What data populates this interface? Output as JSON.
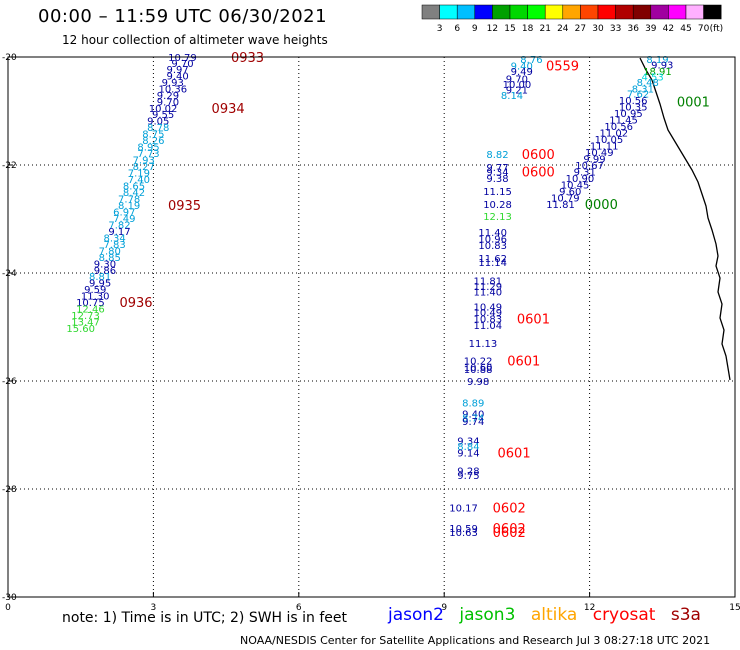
{
  "title": "00:00 – 11:59 UTC 06/30/2021",
  "subtitle": "12 hour collection of altimeter wave heights",
  "footnote": "note: 1) Time is in UTC; 2) SWH is in feet",
  "credit": "NOAA/NESDIS Center for Satellite Applications and Research   Jul  3 08:27:18 UTC 2021",
  "colorbar": {
    "unit": "(ft)",
    "ticks": [
      "3",
      "6",
      "9",
      "12",
      "15",
      "18",
      "21",
      "24",
      "27",
      "30",
      "33",
      "36",
      "39",
      "42",
      "45",
      "70"
    ],
    "colors": [
      "#808080",
      "#00ffff",
      "#00bfff",
      "#0000ff",
      "#00a000",
      "#00d800",
      "#00ff00",
      "#ffff00",
      "#ffa500",
      "#ff4500",
      "#ff0000",
      "#b00000",
      "#800000",
      "#a000a0",
      "#ff00ff",
      "#ffb0ff",
      "#000000"
    ]
  },
  "satellites": [
    {
      "name": "jason2",
      "color": "#0000ff"
    },
    {
      "name": "jason3",
      "color": "#00c000"
    },
    {
      "name": "altika",
      "color": "#ffa500"
    },
    {
      "name": "cryosat",
      "color": "#ff0000"
    },
    {
      "name": "s3a",
      "color": "#a00000"
    }
  ],
  "chart_data": {
    "type": "scatter",
    "xlim": [
      0,
      15
    ],
    "ylim": [
      -30,
      -20
    ],
    "xticks": [
      "0",
      "3",
      "6",
      "9",
      "12",
      "15"
    ],
    "yticks": [
      "-20",
      "-22",
      "-24",
      "-26",
      "-28",
      "-30"
    ],
    "grid": true,
    "points": [
      {
        "x": 3.6,
        "y": -20.0,
        "label": "10.79",
        "color": "#0000a0"
      },
      {
        "x": 3.6,
        "y": -20.11,
        "label": "9.70",
        "color": "#0000a0"
      },
      {
        "x": 3.5,
        "y": -20.22,
        "label": "9.97",
        "color": "#0000a0"
      },
      {
        "x": 3.5,
        "y": -20.34,
        "label": "9.40",
        "color": "#0000a0"
      },
      {
        "x": 3.4,
        "y": -20.46,
        "label": "9.93",
        "color": "#0000a0"
      },
      {
        "x": 3.4,
        "y": -20.58,
        "label": "10.36",
        "color": "#0000a0"
      },
      {
        "x": 3.3,
        "y": -20.7,
        "label": "9.29",
        "color": "#0000a0"
      },
      {
        "x": 3.3,
        "y": -20.82,
        "label": "9.70",
        "color": "#0000a0"
      },
      {
        "x": 3.2,
        "y": -20.94,
        "label": "10.02",
        "color": "#0000a0"
      },
      {
        "x": 3.2,
        "y": -21.06,
        "label": "9.55",
        "color": "#0000a0"
      },
      {
        "x": 3.1,
        "y": -21.18,
        "label": "9.05",
        "color": "#0000a0"
      },
      {
        "x": 3.1,
        "y": -21.3,
        "label": "8.78",
        "color": "#00a0d8"
      },
      {
        "x": 3.0,
        "y": -21.42,
        "label": "8.75",
        "color": "#00a0d8"
      },
      {
        "x": 3.0,
        "y": -21.54,
        "label": "8.26",
        "color": "#00a0d8"
      },
      {
        "x": 2.9,
        "y": -21.66,
        "label": "8.95",
        "color": "#00a0d8"
      },
      {
        "x": 2.9,
        "y": -21.78,
        "label": "7.73",
        "color": "#00a0d8"
      },
      {
        "x": 2.8,
        "y": -21.9,
        "label": "7.93",
        "color": "#00a0d8"
      },
      {
        "x": 2.8,
        "y": -22.02,
        "label": "8.27",
        "color": "#00a0d8"
      },
      {
        "x": 2.7,
        "y": -22.14,
        "label": "7.19",
        "color": "#00a0d8"
      },
      {
        "x": 2.7,
        "y": -22.26,
        "label": "7.40",
        "color": "#00a0d8"
      },
      {
        "x": 2.6,
        "y": -22.38,
        "label": "8.65",
        "color": "#00a0d8"
      },
      {
        "x": 2.6,
        "y": -22.5,
        "label": "8.42",
        "color": "#00a0d8"
      },
      {
        "x": 2.5,
        "y": -22.62,
        "label": "7.78",
        "color": "#00a0d8"
      },
      {
        "x": 2.5,
        "y": -22.74,
        "label": "8.19",
        "color": "#00a0d8"
      },
      {
        "x": 2.4,
        "y": -22.86,
        "label": "6.97",
        "color": "#00a0d8"
      },
      {
        "x": 2.4,
        "y": -22.98,
        "label": "7.49",
        "color": "#00a0d8"
      },
      {
        "x": 2.3,
        "y": -23.1,
        "label": "7.82",
        "color": "#00a0d8"
      },
      {
        "x": 2.3,
        "y": -23.22,
        "label": "9.17",
        "color": "#0000a0"
      },
      {
        "x": 2.2,
        "y": -23.34,
        "label": "8.34",
        "color": "#00a0d8"
      },
      {
        "x": 2.2,
        "y": -23.46,
        "label": "7.83",
        "color": "#00a0d8"
      },
      {
        "x": 2.1,
        "y": -23.58,
        "label": "7.80",
        "color": "#00a0d8"
      },
      {
        "x": 2.1,
        "y": -23.7,
        "label": "8.85",
        "color": "#00a0d8"
      },
      {
        "x": 2.0,
        "y": -23.82,
        "label": "9.30",
        "color": "#0000a0"
      },
      {
        "x": 2.0,
        "y": -23.94,
        "label": "9.86",
        "color": "#0000a0"
      },
      {
        "x": 1.9,
        "y": -24.06,
        "label": "8.81",
        "color": "#00a0d8"
      },
      {
        "x": 1.9,
        "y": -24.18,
        "label": "9.95",
        "color": "#0000a0"
      },
      {
        "x": 1.8,
        "y": -24.3,
        "label": "9.59",
        "color": "#0000a0"
      },
      {
        "x": 1.8,
        "y": -24.42,
        "label": "11.30",
        "color": "#0000a0"
      },
      {
        "x": 1.7,
        "y": -24.54,
        "label": "10.75",
        "color": "#0000a0"
      },
      {
        "x": 1.7,
        "y": -24.66,
        "label": "12.46",
        "color": "#30d830"
      },
      {
        "x": 1.6,
        "y": -24.78,
        "label": "12.73",
        "color": "#30d830"
      },
      {
        "x": 1.6,
        "y": -24.9,
        "label": "13.47",
        "color": "#30d830"
      },
      {
        "x": 1.5,
        "y": -25.02,
        "label": "15.60",
        "color": "#30d830"
      },
      {
        "x": 10.8,
        "y": -20.04,
        "label": "8.76",
        "color": "#00a0d8"
      },
      {
        "x": 10.6,
        "y": -20.16,
        "label": "9.40",
        "color": "#00a0d8"
      },
      {
        "x": 10.6,
        "y": -20.26,
        "label": "9.49",
        "color": "#0000a0"
      },
      {
        "x": 10.5,
        "y": -20.4,
        "label": "9.70",
        "color": "#0000a0"
      },
      {
        "x": 10.5,
        "y": -20.5,
        "label": "10.00",
        "color": "#0000a0"
      },
      {
        "x": 10.5,
        "y": -20.6,
        "label": "9.21",
        "color": "#0000a0"
      },
      {
        "x": 10.4,
        "y": -20.7,
        "label": "8.14",
        "color": "#00a0d8"
      },
      {
        "x": 10.1,
        "y": -21.8,
        "label": "8.82",
        "color": "#00a0d8"
      },
      {
        "x": 10.1,
        "y": -22.04,
        "label": "9.77",
        "color": "#0000a0"
      },
      {
        "x": 10.1,
        "y": -22.12,
        "label": "9.34",
        "color": "#0000a0"
      },
      {
        "x": 10.1,
        "y": -22.24,
        "label": "9.38",
        "color": "#0000a0"
      },
      {
        "x": 10.1,
        "y": -22.48,
        "label": "11.15",
        "color": "#0000a0"
      },
      {
        "x": 10.1,
        "y": -22.72,
        "label": "10.28",
        "color": "#0000a0"
      },
      {
        "x": 10.1,
        "y": -22.94,
        "label": "12.13",
        "color": "#30d830"
      },
      {
        "x": 10.0,
        "y": -23.24,
        "label": "11.40",
        "color": "#0000a0"
      },
      {
        "x": 10.0,
        "y": -23.36,
        "label": "10.96",
        "color": "#0000a0"
      },
      {
        "x": 10.0,
        "y": -23.48,
        "label": "10.83",
        "color": "#0000a0"
      },
      {
        "x": 10.0,
        "y": -23.72,
        "label": "11.62",
        "color": "#0000a0"
      },
      {
        "x": 10.0,
        "y": -23.8,
        "label": "11.14",
        "color": "#0000a0"
      },
      {
        "x": 9.9,
        "y": -24.14,
        "label": "11.81",
        "color": "#0000a0"
      },
      {
        "x": 9.9,
        "y": -24.24,
        "label": "11.29",
        "color": "#0000a0"
      },
      {
        "x": 9.9,
        "y": -24.34,
        "label": "11.40",
        "color": "#0000a0"
      },
      {
        "x": 9.9,
        "y": -24.62,
        "label": "10.49",
        "color": "#0000a0"
      },
      {
        "x": 9.9,
        "y": -24.72,
        "label": "10.49",
        "color": "#0000a0"
      },
      {
        "x": 9.9,
        "y": -24.84,
        "label": "10.83",
        "color": "#0000a0"
      },
      {
        "x": 9.9,
        "y": -24.96,
        "label": "11.04",
        "color": "#0000a0"
      },
      {
        "x": 9.8,
        "y": -25.3,
        "label": "11.13",
        "color": "#0000a0"
      },
      {
        "x": 9.7,
        "y": -25.62,
        "label": "10.22",
        "color": "#0000a0"
      },
      {
        "x": 9.7,
        "y": -25.74,
        "label": "10.60",
        "color": "#0000a0"
      },
      {
        "x": 9.7,
        "y": -25.78,
        "label": "10.88",
        "color": "#0000a0"
      },
      {
        "x": 9.7,
        "y": -26.0,
        "label": "9.98",
        "color": "#0000a0"
      },
      {
        "x": 9.6,
        "y": -26.4,
        "label": "8.89",
        "color": "#00a0d8"
      },
      {
        "x": 9.6,
        "y": -26.6,
        "label": "9.40",
        "color": "#0000a0"
      },
      {
        "x": 9.6,
        "y": -26.68,
        "label": "8.74",
        "color": "#00a0d8"
      },
      {
        "x": 9.6,
        "y": -26.74,
        "label": "9.74",
        "color": "#0000a0"
      },
      {
        "x": 9.5,
        "y": -27.1,
        "label": "9.34",
        "color": "#0000a0"
      },
      {
        "x": 9.5,
        "y": -27.2,
        "label": "8.84",
        "color": "#00a0d8"
      },
      {
        "x": 9.5,
        "y": -27.32,
        "label": "9.14",
        "color": "#0000a0"
      },
      {
        "x": 9.5,
        "y": -27.66,
        "label": "9.28",
        "color": "#0000a0"
      },
      {
        "x": 9.5,
        "y": -27.74,
        "label": "9.75",
        "color": "#0000a0"
      },
      {
        "x": 9.4,
        "y": -28.34,
        "label": "10.17",
        "color": "#0000a0"
      },
      {
        "x": 9.4,
        "y": -28.72,
        "label": "10.59",
        "color": "#0000a0"
      },
      {
        "x": 9.4,
        "y": -28.8,
        "label": "10.63",
        "color": "#0000a0"
      },
      {
        "x": 13.4,
        "y": -20.04,
        "label": "8.19",
        "color": "#00a0d8"
      },
      {
        "x": 13.5,
        "y": -20.14,
        "label": "9.93",
        "color": "#0000a0"
      },
      {
        "x": 13.4,
        "y": -20.26,
        "label": "18.91",
        "color": "#00a000"
      },
      {
        "x": 13.3,
        "y": -20.36,
        "label": "4.53",
        "color": "#00d8d8"
      },
      {
        "x": 13.2,
        "y": -20.46,
        "label": "8.48",
        "color": "#00a0d8"
      },
      {
        "x": 13.1,
        "y": -20.58,
        "label": "8.31",
        "color": "#00a0d8"
      },
      {
        "x": 13.0,
        "y": -20.68,
        "label": "7.62",
        "color": "#00a0d8"
      },
      {
        "x": 12.9,
        "y": -20.8,
        "label": "10.56",
        "color": "#0000a0"
      },
      {
        "x": 12.9,
        "y": -20.92,
        "label": "10.35",
        "color": "#0000a0"
      },
      {
        "x": 12.8,
        "y": -21.04,
        "label": "10.95",
        "color": "#0000a0"
      },
      {
        "x": 12.7,
        "y": -21.16,
        "label": "11.45",
        "color": "#0000a0"
      },
      {
        "x": 12.6,
        "y": -21.28,
        "label": "10.56",
        "color": "#0000a0"
      },
      {
        "x": 12.5,
        "y": -21.4,
        "label": "11.02",
        "color": "#0000a0"
      },
      {
        "x": 12.4,
        "y": -21.52,
        "label": "10.05",
        "color": "#0000a0"
      },
      {
        "x": 12.3,
        "y": -21.64,
        "label": "11.11",
        "color": "#0000a0"
      },
      {
        "x": 12.2,
        "y": -21.76,
        "label": "10.49",
        "color": "#0000a0"
      },
      {
        "x": 12.1,
        "y": -21.88,
        "label": "9.99",
        "color": "#0000a0"
      },
      {
        "x": 12.0,
        "y": -22.0,
        "label": "10.67",
        "color": "#0000a0"
      },
      {
        "x": 11.9,
        "y": -22.12,
        "label": "9.31",
        "color": "#0000a0"
      },
      {
        "x": 11.8,
        "y": -22.24,
        "label": "10.90",
        "color": "#0000a0"
      },
      {
        "x": 11.7,
        "y": -22.36,
        "label": "10.45",
        "color": "#0000a0"
      },
      {
        "x": 11.6,
        "y": -22.48,
        "label": "9.60",
        "color": "#0000a0"
      },
      {
        "x": 11.5,
        "y": -22.6,
        "label": "10.79",
        "color": "#0000a0"
      },
      {
        "x": 11.4,
        "y": -22.72,
        "label": "11.81",
        "color": "#0000a0"
      }
    ],
    "times": [
      {
        "x": 4.6,
        "y": -20.0,
        "label": "0933",
        "color": "#a00000"
      },
      {
        "x": 4.2,
        "y": -20.94,
        "label": "0934",
        "color": "#a00000"
      },
      {
        "x": 3.3,
        "y": -22.74,
        "label": "0935",
        "color": "#a00000"
      },
      {
        "x": 2.3,
        "y": -24.54,
        "label": "0936",
        "color": "#a00000"
      },
      {
        "x": 11.1,
        "y": -20.16,
        "label": "0559",
        "color": "#ff0000"
      },
      {
        "x": 10.6,
        "y": -21.8,
        "label": "0600",
        "color": "#ff0000"
      },
      {
        "x": 10.6,
        "y": -22.12,
        "label": "0600",
        "color": "#ff0000"
      },
      {
        "x": 10.5,
        "y": -24.84,
        "label": "0601",
        "color": "#ff0000"
      },
      {
        "x": 10.3,
        "y": -25.62,
        "label": "0601",
        "color": "#ff0000"
      },
      {
        "x": 10.1,
        "y": -27.32,
        "label": "0601",
        "color": "#ff0000"
      },
      {
        "x": 10.0,
        "y": -28.34,
        "label": "0602",
        "color": "#ff0000"
      },
      {
        "x": 10.0,
        "y": -28.72,
        "label": "0602",
        "color": "#ff0000"
      },
      {
        "x": 10.0,
        "y": -28.8,
        "label": "0602",
        "color": "#ff0000"
      },
      {
        "x": 13.8,
        "y": -20.82,
        "label": "0001",
        "color": "#008000"
      },
      {
        "x": 11.9,
        "y": -22.72,
        "label": "0000",
        "color": "#008000"
      }
    ]
  }
}
